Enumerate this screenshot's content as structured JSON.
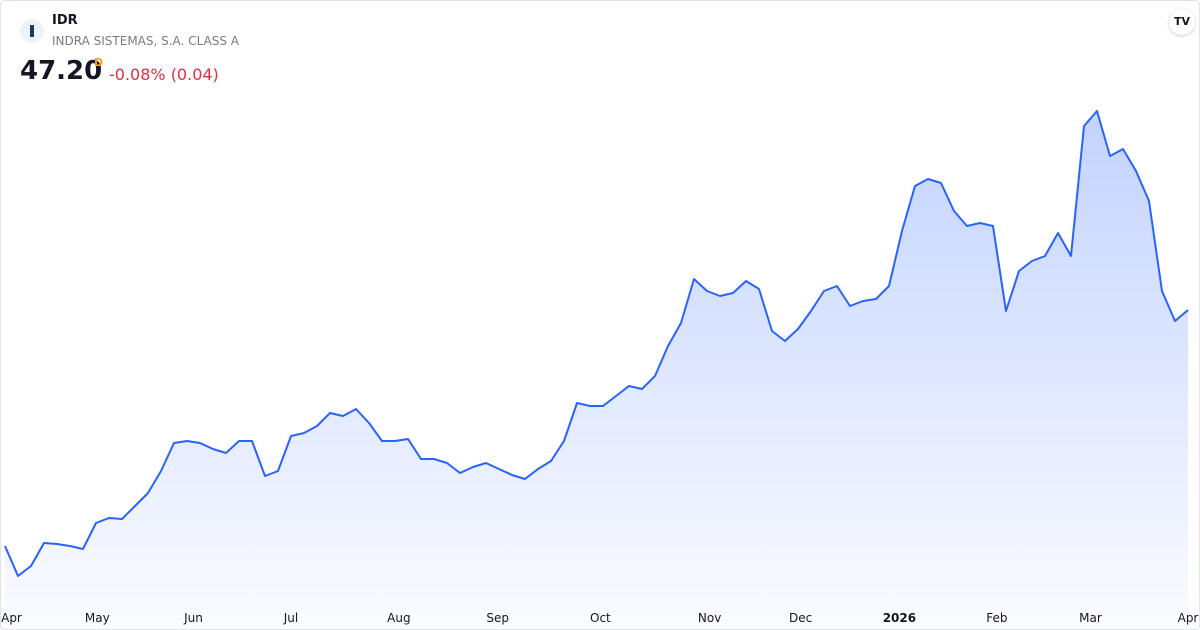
{
  "header": {
    "symbol": "IDR",
    "name": "INDRA SISTEMAS, S.A. CLASS A",
    "price": "47.20",
    "interval": "D",
    "change": "-0.08% (0.04)"
  },
  "chart_data": {
    "type": "area",
    "series": [
      {
        "color": "#2962ff",
        "values": [
          18.88,
          15.28,
          16.48,
          19.24,
          19.12,
          18.88,
          18.52,
          21.64,
          22.24,
          22.12,
          23.68,
          25.24,
          27.88,
          31.24,
          31.48,
          31.24,
          30.52,
          30.04,
          31.48,
          31.48,
          27.28,
          27.88,
          32.08,
          32.44,
          33.28,
          34.84,
          34.48,
          35.32,
          33.64,
          31.48,
          31.48,
          31.72,
          29.32,
          29.32,
          28.84,
          27.64,
          28.36,
          28.84,
          28.12,
          27.4,
          26.92,
          28.12,
          29.08,
          31.48,
          36.04,
          35.68,
          35.68,
          36.88,
          38.08,
          37.72,
          39.28,
          42.88,
          45.64,
          50.92,
          49.48,
          48.88,
          49.24,
          50.68,
          49.72,
          44.68,
          43.48,
          44.92,
          47.08,
          49.48,
          50.08,
          47.68,
          48.28,
          48.52,
          50.08,
          56.68,
          62.08,
          62.92,
          62.44,
          59.08,
          57.28,
          57.64,
          57.28,
          47.08,
          51.88,
          53.08,
          53.68,
          56.44,
          53.68,
          69.28,
          71.08,
          65.68,
          66.52,
          63.88,
          60.28,
          49.48,
          45.88,
          47.2
        ]
      }
    ],
    "xticks": [
      {
        "value": 0.5,
        "label": "Apr"
      },
      {
        "value": 7.1,
        "label": "May"
      },
      {
        "value": 14.5,
        "label": "Jun"
      },
      {
        "value": 22,
        "label": "Jul"
      },
      {
        "value": 30.3,
        "label": "Aug"
      },
      {
        "value": 37.9,
        "label": "Sep"
      },
      {
        "value": 45.8,
        "label": "Oct"
      },
      {
        "value": 54.2,
        "label": "Nov"
      },
      {
        "value": 61.2,
        "label": "Dec"
      },
      {
        "value": 68.8,
        "label": "2026"
      },
      {
        "value": 76.3,
        "label": "Feb"
      },
      {
        "value": 83.5,
        "label": "Mar"
      },
      {
        "value": 91,
        "label": "Apr"
      }
    ]
  }
}
